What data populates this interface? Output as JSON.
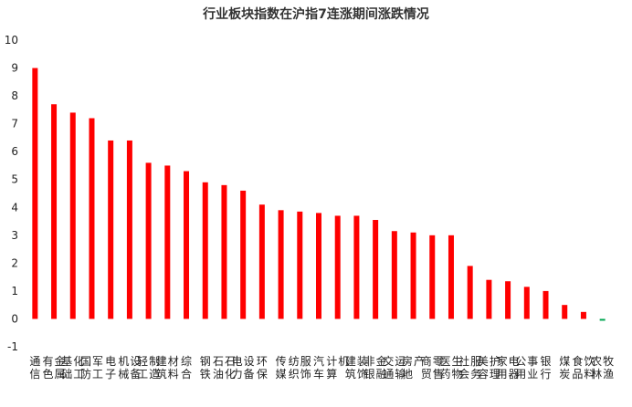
{
  "chart_data": {
    "type": "bar",
    "title": "行业板块指数在沪指7连涨期间涨跌情况",
    "xlabel": "",
    "ylabel": "",
    "ylim": [
      -1,
      10
    ],
    "yticks": [
      -1,
      0,
      1,
      2,
      3,
      4,
      5,
      6,
      7,
      8,
      9,
      10
    ],
    "grid": false,
    "legend": "none",
    "categories": [
      "通信",
      "有色金属",
      "基础化工",
      "国防军工",
      "电子",
      "机械设备",
      "轻工制造",
      "建筑材料",
      "综合",
      "钢铁",
      "石油石化",
      "电力设备",
      "环保",
      "传媒",
      "纺织服饰",
      "汽车",
      "计算机",
      "建筑装饰",
      "非银金融",
      "交通运输",
      "房地产",
      "商贸零售",
      "医药生物",
      "社会服务",
      "美容护理",
      "家用电器",
      "公用事业",
      "银行",
      "煤炭",
      "食品饮料",
      "农林牧渔"
    ],
    "values": [
      9.0,
      7.7,
      7.4,
      7.2,
      6.4,
      6.4,
      5.6,
      5.5,
      5.3,
      4.9,
      4.8,
      4.6,
      4.1,
      3.9,
      3.85,
      3.8,
      3.7,
      3.7,
      3.55,
      3.15,
      3.1,
      3.0,
      3.0,
      1.9,
      1.4,
      1.35,
      1.15,
      1.0,
      0.5,
      0.25,
      -0.05
    ],
    "colors": {
      "positive": "#ff0000",
      "negative": "#00a651",
      "axis_text": "#222222",
      "title": "#333333"
    }
  }
}
